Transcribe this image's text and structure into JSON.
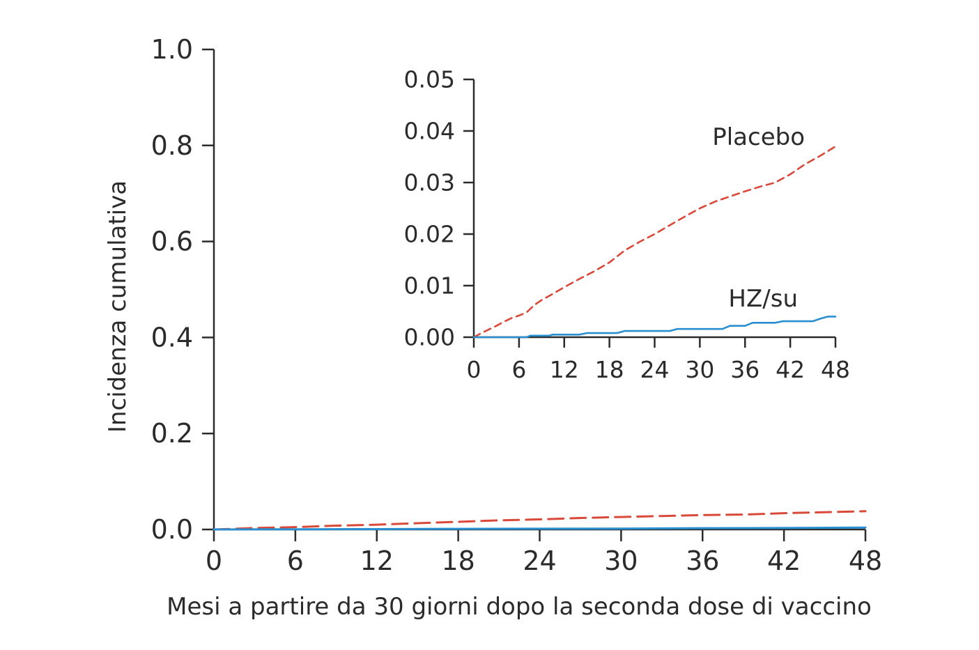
{
  "chart_data": [
    {
      "id": "main",
      "type": "line",
      "xlabel": "Mesi a partire da 30 giorni dopo la seconda dose di vaccino",
      "ylabel": "Incidenza cumulativa",
      "xlim": [
        0,
        48
      ],
      "ylim": [
        0,
        1.0
      ],
      "x_ticks": [
        "0",
        "6",
        "12",
        "18",
        "24",
        "30",
        "36",
        "42",
        "48"
      ],
      "y_ticks": [
        "0.0",
        "0.2",
        "0.4",
        "0.6",
        "0.8",
        "1.0"
      ],
      "grid": false,
      "series": [
        {
          "key": "placebo",
          "color": "#d9493a",
          "dash": "dashed",
          "x": [
            0,
            3,
            6,
            9,
            12,
            15,
            18,
            21,
            24,
            27,
            30,
            33,
            36,
            39,
            42,
            45,
            48
          ],
          "y": [
            0,
            0.003,
            0.005,
            0.008,
            0.01,
            0.013,
            0.016,
            0.019,
            0.021,
            0.024,
            0.026,
            0.028,
            0.03,
            0.031,
            0.034,
            0.036,
            0.038
          ]
        },
        {
          "key": "hzsu",
          "color": "#2a8fd0",
          "dash": "solid",
          "x": [
            0,
            6,
            12,
            18,
            24,
            30,
            36,
            42,
            48
          ],
          "y": [
            0,
            0.0004,
            0.0007,
            0.0013,
            0.0016,
            0.0018,
            0.0028,
            0.0031,
            0.004
          ]
        }
      ]
    },
    {
      "id": "inset",
      "type": "line",
      "xlim": [
        0,
        48
      ],
      "ylim": [
        0,
        0.05
      ],
      "x_ticks": [
        "0",
        "6",
        "12",
        "18",
        "24",
        "30",
        "36",
        "42",
        "48"
      ],
      "y_ticks": [
        "0.00",
        "0.01",
        "0.02",
        "0.03",
        "0.04",
        "0.05"
      ],
      "grid": false,
      "series": [
        {
          "key": "placebo",
          "name": "Placebo",
          "color": "#d9493a",
          "dash": "dashed",
          "x": [
            0,
            1,
            2,
            3,
            4,
            5,
            6,
            7,
            8,
            9,
            10,
            12,
            14,
            16,
            18,
            20,
            22,
            24,
            26,
            28,
            30,
            32,
            34,
            36,
            38,
            40,
            42,
            44,
            46,
            48
          ],
          "y": [
            0,
            0.0008,
            0.0015,
            0.0022,
            0.003,
            0.0037,
            0.0042,
            0.0048,
            0.0062,
            0.0072,
            0.008,
            0.0097,
            0.0113,
            0.0128,
            0.0145,
            0.0168,
            0.0185,
            0.02,
            0.0217,
            0.0234,
            0.025,
            0.0263,
            0.0273,
            0.0283,
            0.0292,
            0.03,
            0.0316,
            0.0336,
            0.0352,
            0.037
          ]
        },
        {
          "key": "hzsu",
          "name": "HZ/su",
          "color": "#2a8fd0",
          "dash": "solid",
          "x": [
            0,
            7,
            7.5,
            10,
            10.5,
            14,
            15,
            19,
            20,
            26,
            27,
            33,
            34,
            36,
            37,
            40,
            41,
            45,
            46,
            47,
            48
          ],
          "y": [
            0,
            0,
            0.0003,
            0.0003,
            0.0005,
            0.0005,
            0.0008,
            0.0008,
            0.0012,
            0.0012,
            0.0016,
            0.0016,
            0.0022,
            0.0022,
            0.0028,
            0.0028,
            0.0031,
            0.0031,
            0.0036,
            0.004,
            0.004
          ]
        }
      ]
    }
  ]
}
